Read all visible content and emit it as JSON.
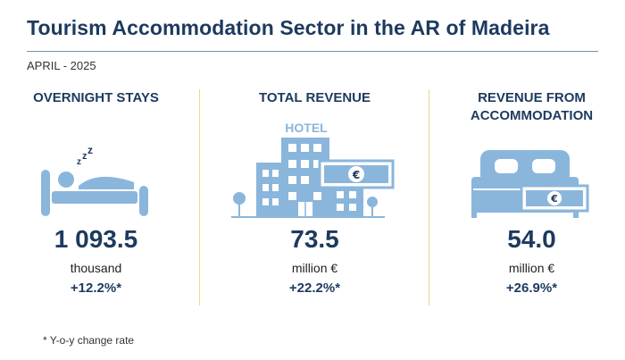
{
  "header": {
    "title": "Tourism Accommodation Sector in the AR of Madeira",
    "period": "APRIL - 2025"
  },
  "indicators": [
    {
      "heading": "OVERNIGHT STAYS",
      "icon": "sleeping-person-icon",
      "value": "1 093.5",
      "unit": "thousand",
      "change": "+12.2%*"
    },
    {
      "heading": "TOTAL REVENUE",
      "icon": "hotel-building-icon",
      "icon_label": "HOTEL",
      "badge": "€",
      "value": "73.5",
      "unit": "million €",
      "change": "+22.2%*"
    },
    {
      "heading": "REVENUE FROM ACCOMMODATION",
      "icon": "bed-money-icon",
      "badge": "€",
      "value": "54.0",
      "unit": "million €",
      "change": "+26.9%*"
    }
  ],
  "footnote": "* Y-o-y change rate",
  "colors": {
    "primary": "#1d3a5f",
    "icon": "#8ab6dc",
    "divider": "#f3d48a"
  }
}
